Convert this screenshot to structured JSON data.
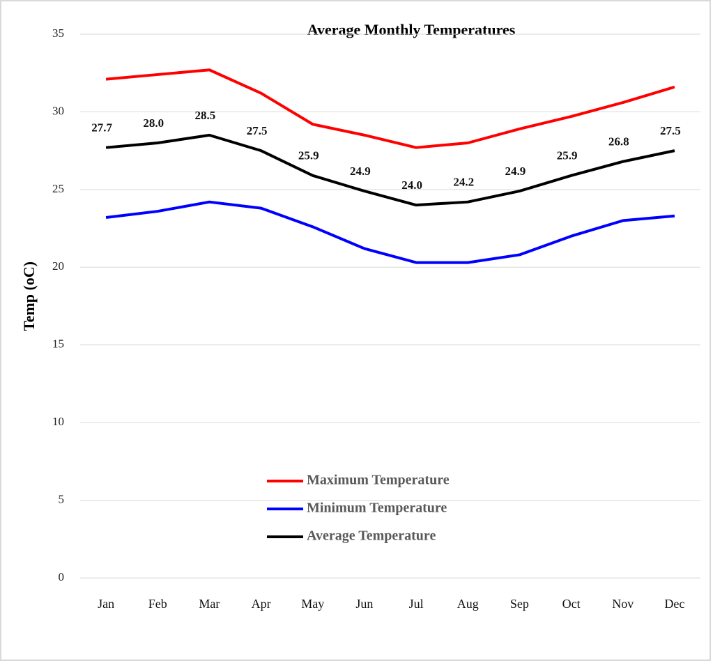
{
  "chart_data": {
    "type": "line",
    "title": "Average Monthly Temperatures",
    "y_label": "Temp (oC)",
    "categories": [
      "Jan",
      "Feb",
      "Mar",
      "Apr",
      "May",
      "Jun",
      "Jul",
      "Aug",
      "Sep",
      "Oct",
      "Nov",
      "Dec"
    ],
    "series": [
      {
        "name": "Maximum Temperature",
        "color": "#ff0000",
        "values": [
          32.1,
          32.4,
          32.7,
          31.2,
          29.2,
          28.5,
          27.7,
          28.0,
          28.9,
          29.7,
          30.6,
          31.6
        ]
      },
      {
        "name": "Minimum Temperature",
        "color": "#0000ff",
        "values": [
          23.2,
          23.6,
          24.2,
          23.8,
          22.6,
          21.2,
          20.3,
          20.3,
          20.8,
          22.0,
          23.0,
          23.3
        ]
      },
      {
        "name": "Average Temperature",
        "color": "#000000",
        "values": [
          27.7,
          28.0,
          28.5,
          27.5,
          25.9,
          24.9,
          24.0,
          24.2,
          24.9,
          25.9,
          26.8,
          27.5
        ],
        "value_labels": [
          "27.7",
          "28.0",
          "28.5",
          "27.5",
          "25.9",
          "24.9",
          "24.0",
          "24.2",
          "24.9",
          "25.9",
          "26.8",
          "27.5"
        ]
      }
    ],
    "ylim": [
      0,
      35
    ],
    "yticks": [
      0,
      5,
      10,
      15,
      20,
      25,
      30,
      35
    ],
    "grid": true,
    "legend": "center"
  }
}
